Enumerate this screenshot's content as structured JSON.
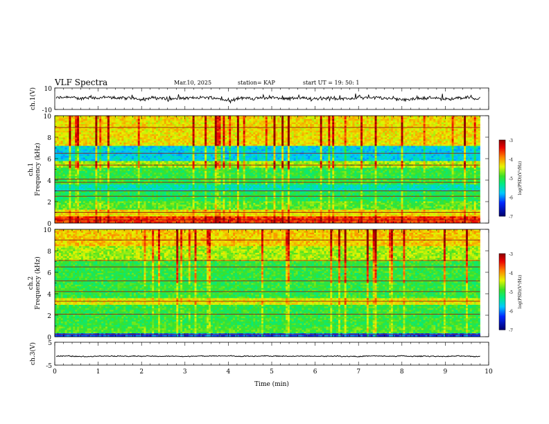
{
  "header": {
    "title": "VLF Spectra",
    "date": "Mar.10, 2025",
    "station": "station= KAP",
    "start": "start  UT =  19: 50: 1"
  },
  "chart_data": [
    {
      "type": "line",
      "name": "ch1-waveform",
      "ylabel": "ch.1(V)",
      "ylim": [
        -10,
        10
      ],
      "y_ticklabels": [
        "10",
        "-10"
      ],
      "xlim": [
        0,
        10
      ],
      "note_series_range": [
        -2,
        3
      ]
    },
    {
      "type": "heatmap",
      "name": "ch1-spectrogram",
      "ylabel_line1": "ch.1",
      "ylabel_line2": "Frequency (kHz)",
      "ylim": [
        0,
        10
      ],
      "y_ticks": [
        0,
        2,
        4,
        6,
        8,
        10
      ],
      "xlim": [
        0,
        9.8
      ],
      "colorbar": {
        "label": "log(PSD)(V²/Hz)",
        "range": [
          -7,
          -3
        ],
        "ticks": [
          -3,
          -4,
          -5,
          -6,
          -7
        ]
      },
      "horizontal_lines_khz": [
        0.3,
        1.0,
        2.5,
        3.0,
        3.8,
        4.1,
        5.4,
        6.5,
        8.9
      ]
    },
    {
      "type": "heatmap",
      "name": "ch2-spectrogram",
      "ylabel_line1": "ch.2",
      "ylabel_line2": "Frequency (kHz)",
      "ylim": [
        0,
        10
      ],
      "y_ticks": [
        0,
        2,
        4,
        6,
        8,
        10
      ],
      "xlim": [
        0,
        9.8
      ],
      "colorbar": {
        "label": "log(PSD)(V²/Hz)",
        "range": [
          -7,
          -3
        ],
        "ticks": [
          -3,
          -4,
          -5,
          -6,
          -7
        ]
      },
      "horizontal_lines_khz": [
        0.2,
        2.1,
        3.3,
        4.2,
        5.2,
        6.5,
        7.1,
        9.0
      ]
    },
    {
      "type": "line",
      "name": "ch3-waveform",
      "ylabel": "ch.3(V)",
      "ylim": [
        -5,
        5
      ],
      "y_ticklabels": [
        "5",
        "-5"
      ],
      "xlim": [
        0,
        10
      ],
      "xlabel": "Time (min)",
      "x_ticks": [
        0,
        1,
        2,
        3,
        4,
        5,
        6,
        7,
        8,
        9,
        10
      ],
      "note_series_range": [
        -1.5,
        -0.6
      ]
    }
  ]
}
